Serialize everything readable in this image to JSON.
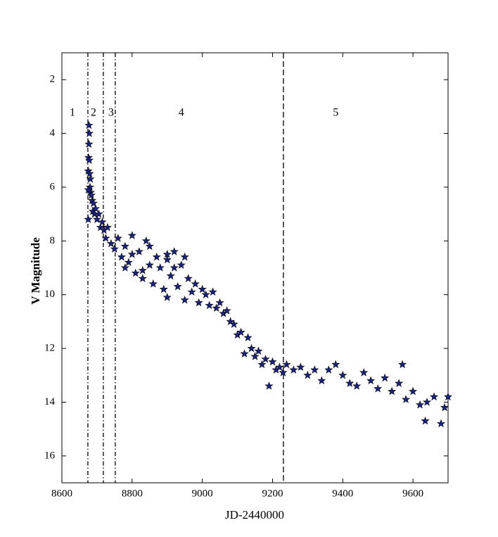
{
  "chart_data": {
    "type": "scatter",
    "xlabel": "JD-2440000",
    "ylabel": "V Magnitude",
    "xlim": [
      8600,
      9700
    ],
    "ylim": [
      1,
      17
    ],
    "y_inverted": true,
    "xticks": [
      8600,
      8800,
      9000,
      9200,
      9400,
      9600
    ],
    "yticks": [
      2,
      4,
      6,
      8,
      10,
      12,
      14,
      16
    ],
    "grid": false,
    "vlines": [
      {
        "x": 8674,
        "style": "dashdot"
      },
      {
        "x": 8718,
        "style": "dashdot"
      },
      {
        "x": 8752,
        "style": "dashdot"
      },
      {
        "x": 9231,
        "style": "dashed"
      }
    ],
    "annotations": [
      {
        "text": "1",
        "x": 8630,
        "y": 3.25
      },
      {
        "text": "2",
        "x": 8690,
        "y": 3.25
      },
      {
        "text": "3",
        "x": 8740,
        "y": 3.25
      },
      {
        "text": "4",
        "x": 8940,
        "y": 3.25
      },
      {
        "text": "5",
        "x": 9380,
        "y": 3.25
      }
    ],
    "series": [
      {
        "color": "#1a237e",
        "x": [
          8675,
          8676,
          8677,
          8677,
          8678,
          8678,
          8679,
          8680,
          8681,
          8682,
          8684,
          8686,
          8688,
          8690,
          8693,
          8696,
          8700,
          8705,
          8710,
          8715,
          8720,
          8725,
          8730,
          8740,
          8750,
          8760,
          8770,
          8780,
          8790,
          8800,
          8800,
          8810,
          8820,
          8830,
          8840,
          8850,
          8860,
          8870,
          8880,
          8890,
          8900,
          8900,
          8910,
          8920,
          8930,
          8940,
          8950,
          8960,
          8970,
          8980,
          8990,
          9000,
          9010,
          9020,
          9030,
          9040,
          9050,
          9060,
          9070,
          9080,
          9090,
          9100,
          9110,
          9120,
          9130,
          9140,
          9150,
          9160,
          9170,
          9180,
          9190,
          9200,
          9210,
          9220,
          9230,
          9240,
          9260,
          9280,
          9300,
          9320,
          9340,
          9360,
          9380,
          9400,
          9420,
          9440,
          9460,
          9480,
          9500,
          9520,
          9540,
          9560,
          9570,
          9580,
          9600,
          9620,
          9635,
          9640,
          9660,
          9680,
          9690,
          9700,
          8675,
          8675,
          8850,
          8900,
          8950,
          8780,
          8830,
          8920
        ],
        "values": [
          5.4,
          4.9,
          3.7,
          4.4,
          4.0,
          5.0,
          5.5,
          6.0,
          5.7,
          6.2,
          6.3,
          6.5,
          6.9,
          6.6,
          7.0,
          6.8,
          7.2,
          7.0,
          7.5,
          7.3,
          7.6,
          7.9,
          7.5,
          8.1,
          8.3,
          7.9,
          8.6,
          8.2,
          8.8,
          8.5,
          7.8,
          9.2,
          8.4,
          9.4,
          8.0,
          8.9,
          9.6,
          8.6,
          9.0,
          9.8,
          8.5,
          10.1,
          9.3,
          8.4,
          9.7,
          8.9,
          10.2,
          9.4,
          9.9,
          9.6,
          10.3,
          9.8,
          10.0,
          10.4,
          9.9,
          10.5,
          10.3,
          10.7,
          10.6,
          11.0,
          11.1,
          11.5,
          11.4,
          12.2,
          11.6,
          12.0,
          12.3,
          12.1,
          12.6,
          12.4,
          13.4,
          12.5,
          12.8,
          12.7,
          12.9,
          12.6,
          12.8,
          12.7,
          13.0,
          12.8,
          13.2,
          12.8,
          12.6,
          13.0,
          13.3,
          13.4,
          12.9,
          13.2,
          13.5,
          13.1,
          13.6,
          13.3,
          12.6,
          13.9,
          13.6,
          14.1,
          14.7,
          14.0,
          13.8,
          14.8,
          14.2,
          13.8,
          7.2,
          6.1,
          8.2,
          8.7,
          8.6,
          9.0,
          9.1,
          9.0
        ]
      }
    ]
  }
}
